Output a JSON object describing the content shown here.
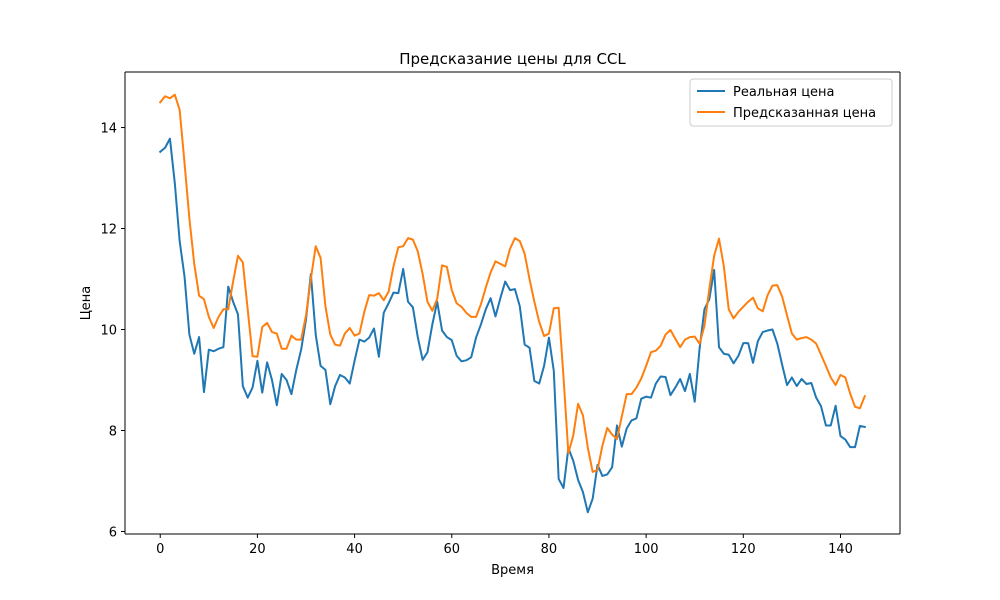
{
  "chart_data": {
    "type": "line",
    "title": "Предсказание цены для CCL",
    "xlabel": "Время",
    "ylabel": "Цена",
    "xlim": [
      -7.25,
      152.25
    ],
    "ylim": [
      5.95,
      15.1
    ],
    "xticks": [
      0,
      20,
      40,
      60,
      80,
      100,
      120,
      140
    ],
    "yticks": [
      6,
      8,
      10,
      12,
      14
    ],
    "grid": false,
    "legend_position": "top-right",
    "colors": {
      "real": "#1f77b4",
      "predicted": "#ff7f0e"
    },
    "series": [
      {
        "name": "Реальная цена",
        "color": "#1f77b4",
        "values": [
          13.52,
          13.6,
          13.78,
          12.9,
          11.75,
          11.05,
          9.9,
          9.52,
          9.85,
          8.76,
          9.6,
          9.57,
          9.62,
          9.65,
          10.85,
          10.55,
          10.3,
          8.88,
          8.65,
          8.85,
          9.38,
          8.75,
          9.35,
          9.0,
          8.5,
          9.12,
          9.0,
          8.72,
          9.2,
          9.6,
          10.2,
          11.1,
          9.9,
          9.28,
          9.2,
          8.52,
          8.88,
          9.1,
          9.05,
          8.93,
          9.38,
          9.8,
          9.76,
          9.84,
          10.02,
          9.46,
          10.33,
          10.52,
          10.73,
          10.72,
          11.2,
          10.55,
          10.44,
          9.85,
          9.4,
          9.55,
          10.1,
          10.55,
          9.98,
          9.85,
          9.79,
          9.48,
          9.37,
          9.39,
          9.45,
          9.84,
          10.1,
          10.4,
          10.62,
          10.26,
          10.62,
          10.95,
          10.78,
          10.8,
          10.46,
          9.7,
          9.64,
          8.98,
          8.93,
          9.28,
          9.84,
          9.18,
          7.04,
          6.86,
          7.65,
          7.4,
          7.02,
          6.78,
          6.38,
          6.65,
          7.32,
          7.1,
          7.13,
          7.27,
          8.1,
          7.68,
          8.04,
          8.2,
          8.24,
          8.63,
          8.67,
          8.65,
          8.93,
          9.07,
          9.06,
          8.7,
          8.85,
          9.02,
          8.78,
          9.12,
          8.57,
          9.62,
          10.4,
          10.6,
          11.18,
          9.65,
          9.52,
          9.5,
          9.33,
          9.48,
          9.73,
          9.73,
          9.34,
          9.77,
          9.95,
          9.98,
          10.0,
          9.72,
          9.3,
          8.9,
          9.05,
          8.88,
          9.02,
          8.92,
          8.94,
          8.65,
          8.48,
          8.1,
          8.1,
          8.49,
          7.89,
          7.82,
          7.67,
          7.67,
          8.09,
          8.07
        ]
      },
      {
        "name": "Предсказанная цена",
        "color": "#ff7f0e",
        "values": [
          14.5,
          14.62,
          14.58,
          14.65,
          14.35,
          13.3,
          12.2,
          11.3,
          10.67,
          10.6,
          10.25,
          10.03,
          10.25,
          10.4,
          10.4,
          10.95,
          11.46,
          11.33,
          10.4,
          9.47,
          9.46,
          10.05,
          10.13,
          9.95,
          9.92,
          9.62,
          9.62,
          9.88,
          9.8,
          9.8,
          10.28,
          11.0,
          11.65,
          11.42,
          10.46,
          9.9,
          9.7,
          9.68,
          9.92,
          10.03,
          9.88,
          9.92,
          10.35,
          10.68,
          10.67,
          10.72,
          10.58,
          10.75,
          11.25,
          11.63,
          11.65,
          11.81,
          11.78,
          11.55,
          11.1,
          10.55,
          10.37,
          10.61,
          11.27,
          11.24,
          10.78,
          10.52,
          10.45,
          10.33,
          10.25,
          10.25,
          10.5,
          10.83,
          11.13,
          11.35,
          11.3,
          11.25,
          11.6,
          11.81,
          11.75,
          11.5,
          11.0,
          10.55,
          10.15,
          9.87,
          9.92,
          10.42,
          10.43,
          9.05,
          7.55,
          7.9,
          8.53,
          8.3,
          7.66,
          7.18,
          7.22,
          7.7,
          8.05,
          7.92,
          7.83,
          8.28,
          8.72,
          8.72,
          8.85,
          9.03,
          9.28,
          9.55,
          9.58,
          9.68,
          9.9,
          9.99,
          9.82,
          9.65,
          9.8,
          9.85,
          9.86,
          9.72,
          10.07,
          10.8,
          11.46,
          11.8,
          11.25,
          10.4,
          10.22,
          10.35,
          10.45,
          10.55,
          10.63,
          10.42,
          10.36,
          10.68,
          10.87,
          10.88,
          10.65,
          10.28,
          9.92,
          9.8,
          9.83,
          9.85,
          9.8,
          9.72,
          9.5,
          9.28,
          9.05,
          8.9,
          9.1,
          9.05,
          8.73,
          8.47,
          8.44,
          8.68
        ]
      }
    ]
  }
}
